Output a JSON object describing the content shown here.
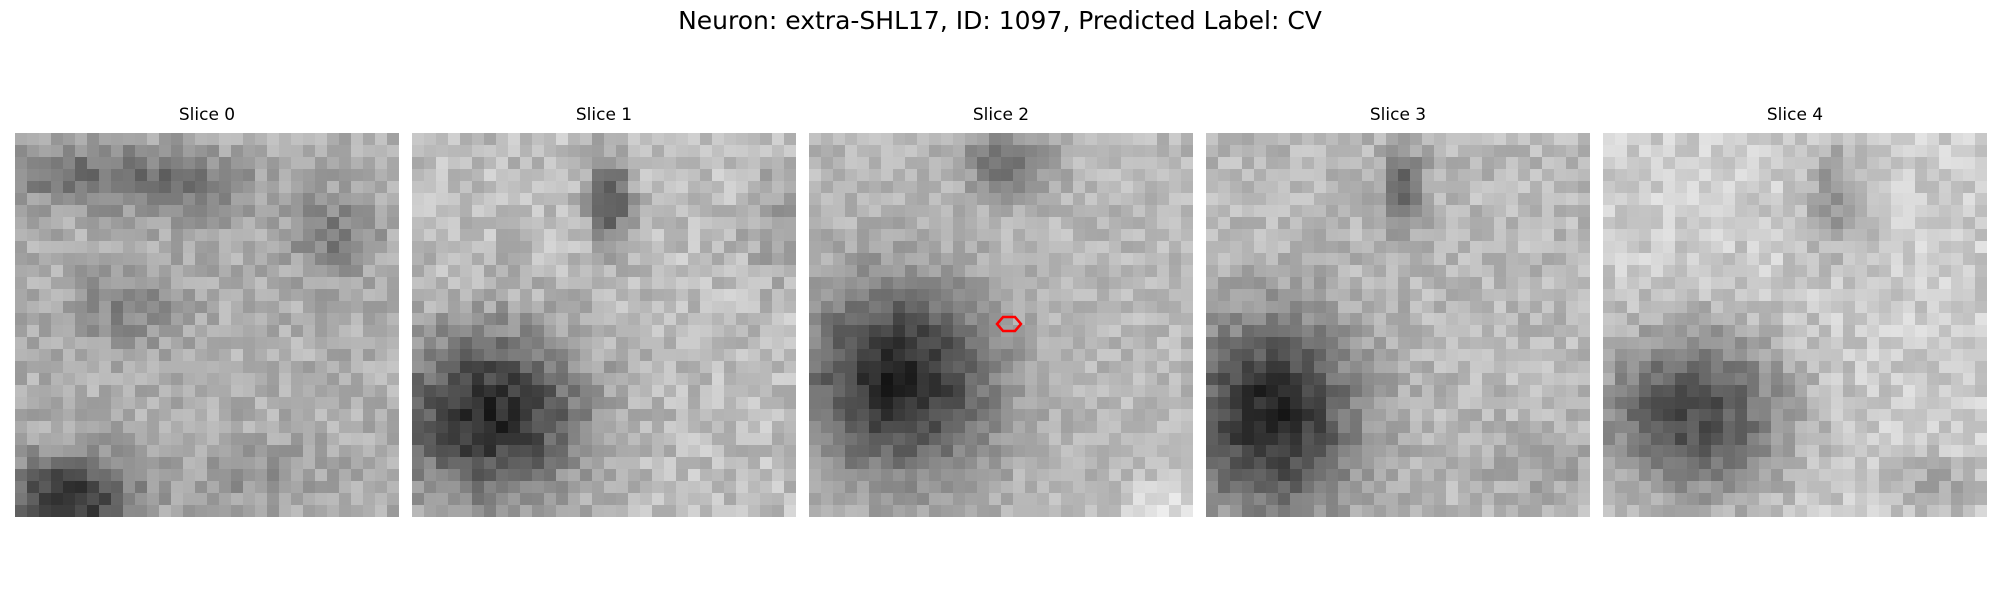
{
  "figure": {
    "title": "Neuron: extra-SHL17, ID: 1097, Predicted Label: CV"
  },
  "panels": [
    {
      "title": "Slice 0"
    },
    {
      "title": "Slice 1"
    },
    {
      "title": "Slice 2"
    },
    {
      "title": "Slice 3"
    },
    {
      "title": "Slice 4"
    }
  ],
  "marker": {
    "panel_index": 2,
    "color": "#ff0000",
    "shape": "hexagon-outline"
  }
}
